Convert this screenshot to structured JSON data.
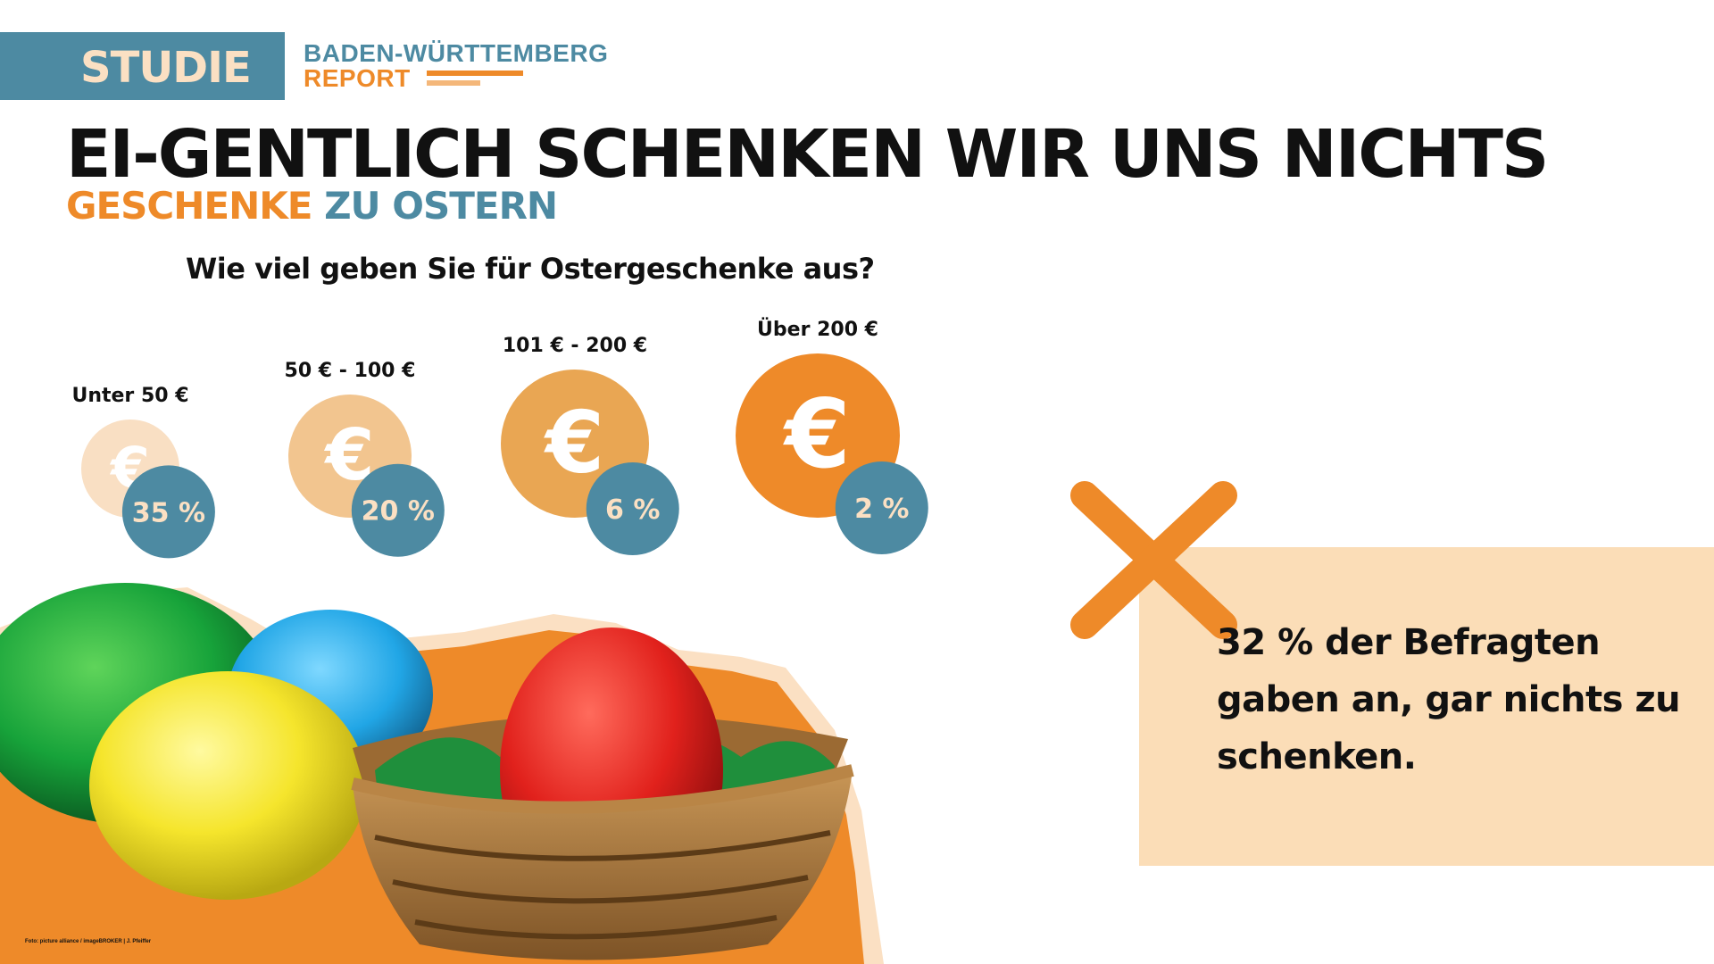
{
  "header": {
    "tag": "STUDIE",
    "report_title": "BADEN-WÜRTTEMBERG",
    "report_sub": "REPORT"
  },
  "headline": "EI-GENTLICH SCHENKEN WIR UNS NICHTS",
  "subheadline": {
    "part1": "GESCHENKE",
    "part2": "ZU OSTERN"
  },
  "colors": {
    "accent_orange": "#ee8a29",
    "accent_blue": "#4d8aa2",
    "callout_bg": "#fbddb7",
    "coin_shades": [
      "#f9dfc3",
      "#f2c58f",
      "#e9a653",
      "#ee8a29"
    ]
  },
  "chart_data": {
    "type": "bubble",
    "title": "Wie viel geben Sie für Ostergeschenke aus?",
    "categories": [
      "Unter 50 €",
      "50 € - 100 €",
      "101 € - 200 €",
      "Über 200 €"
    ],
    "values": [
      35,
      20,
      6,
      2
    ],
    "value_labels": [
      "35 %",
      "20 %",
      "6 %",
      "2 %"
    ],
    "icon": "euro-coin-icon"
  },
  "callout": {
    "icon": "cross-icon",
    "text": "32 % der Befragten gaben an, gar nichts zu schenken."
  },
  "photo": {
    "subject": "easter-eggs-in-basket",
    "credit": "Foto: picture alliance / imageBROKER | J. Pfeiffer"
  }
}
